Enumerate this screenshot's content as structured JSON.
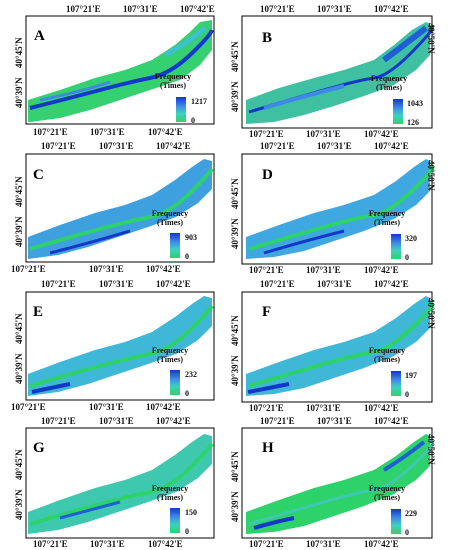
{
  "coords": {
    "lon": [
      "107°21'E",
      "107°31'E",
      "107°42'E"
    ],
    "lat": [
      "40°45'N",
      "40°39'N"
    ],
    "lat_right": [
      "40°50'N",
      "40°45'N",
      "40°39'N"
    ]
  },
  "legend_title": [
    "Frequency",
    "(Times)"
  ],
  "colors": {
    "high": "#1238c9",
    "mid": "#3f88e6",
    "low": "#2ed26a",
    "frame": "#000000"
  },
  "panels": [
    {
      "letter": "A",
      "max": "1217",
      "min": "0"
    },
    {
      "letter": "B",
      "max": "1043",
      "min": "126"
    },
    {
      "letter": "C",
      "max": "903",
      "min": "0"
    },
    {
      "letter": "D",
      "max": "320",
      "min": "0"
    },
    {
      "letter": "E",
      "max": "232",
      "min": "0"
    },
    {
      "letter": "F",
      "max": "197",
      "min": "0"
    },
    {
      "letter": "G",
      "max": "150",
      "min": "0"
    },
    {
      "letter": "H",
      "max": "229",
      "min": "0"
    }
  ]
}
